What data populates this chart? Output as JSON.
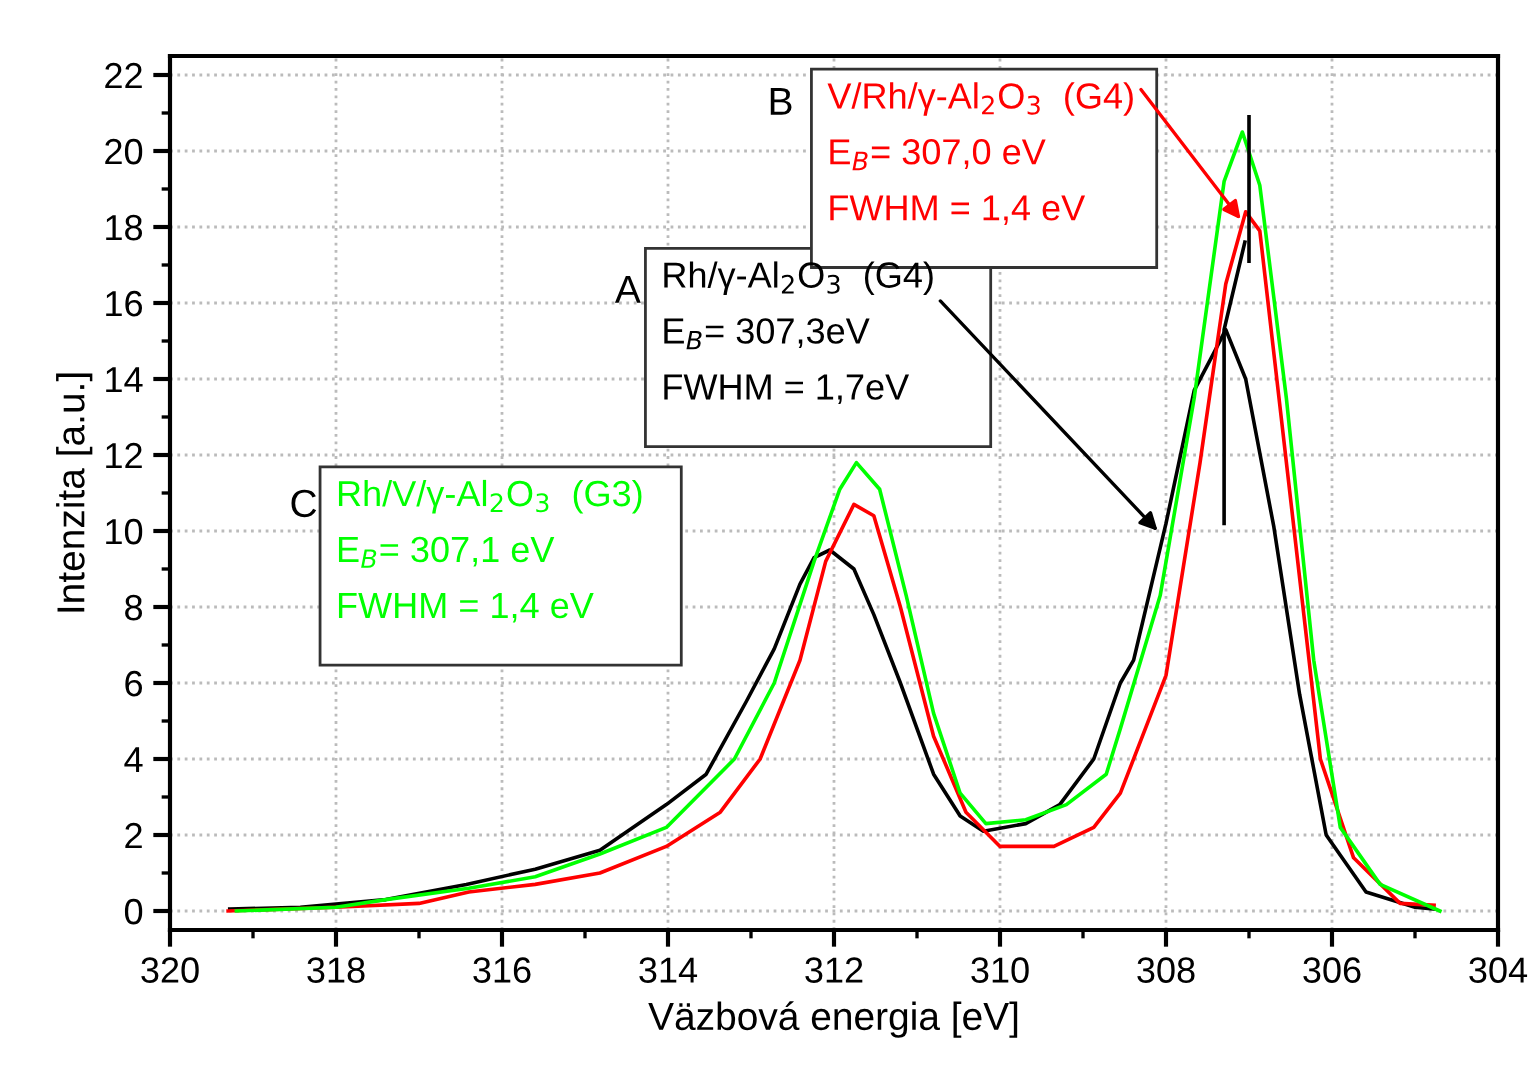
{
  "chart_data": {
    "type": "line",
    "xlabel": "Väzbová energia [eV]",
    "ylabel": "Intenzita [a.u.]",
    "xlim": [
      320,
      304
    ],
    "ylim": [
      -0.5,
      22.5
    ],
    "xticks": [
      320,
      318,
      316,
      314,
      312,
      310,
      308,
      306,
      304
    ],
    "yticks": [
      0,
      2,
      4,
      6,
      8,
      10,
      12,
      14,
      16,
      18,
      20,
      22
    ],
    "grid": true,
    "legend": false,
    "marker": "none",
    "line_style": "solid",
    "series": [
      {
        "color": "#000000",
        "x": [
          319.28,
          318.43,
          317.4,
          316.43,
          315.6,
          314.82,
          314.02,
          313.54,
          313.06,
          312.72,
          312.41,
          312.24,
          312.05,
          311.76,
          311.52,
          311.2,
          310.8,
          310.48,
          310.2,
          309.69,
          309.28,
          308.87,
          308.55,
          308.39,
          308.0,
          307.66,
          307.42,
          307.28,
          307.04,
          306.7,
          306.39,
          306.07,
          305.59,
          305.0,
          304.77
        ],
        "values": [
          0.05,
          0.1,
          0.3,
          0.7,
          1.1,
          1.6,
          2.8,
          3.6,
          5.5,
          6.9,
          8.6,
          9.3,
          9.5,
          9.0,
          7.8,
          6.0,
          3.6,
          2.5,
          2.1,
          2.3,
          2.8,
          4.0,
          6.0,
          6.6,
          10.2,
          13.7,
          14.7,
          15.3,
          14.0,
          10.1,
          5.7,
          2.0,
          0.5,
          0.1,
          0.05
        ]
      },
      {
        "color": "#ff0000",
        "x": [
          319.3,
          318.0,
          317.0,
          316.4,
          315.6,
          314.82,
          314.02,
          313.37,
          312.89,
          312.41,
          312.1,
          311.76,
          311.52,
          311.2,
          310.8,
          310.41,
          310.0,
          309.35,
          308.87,
          308.55,
          308.0,
          307.59,
          307.28,
          307.04,
          306.87,
          306.46,
          306.14,
          305.74,
          305.18,
          304.77
        ],
        "values": [
          0.0,
          0.1,
          0.2,
          0.5,
          0.7,
          1.0,
          1.7,
          2.6,
          4.0,
          6.6,
          9.2,
          10.7,
          10.4,
          8.0,
          4.6,
          2.6,
          1.7,
          1.7,
          2.2,
          3.1,
          6.2,
          11.8,
          16.5,
          18.4,
          17.9,
          10.1,
          4.0,
          1.4,
          0.2,
          0.15
        ]
      },
      {
        "color": "#00ff00",
        "x": [
          319.2,
          318.0,
          317.4,
          316.4,
          315.6,
          314.82,
          314.02,
          313.2,
          312.72,
          312.24,
          311.93,
          311.73,
          311.45,
          311.13,
          310.8,
          310.48,
          310.17,
          309.69,
          309.2,
          308.72,
          308.55,
          308.07,
          307.66,
          307.3,
          307.08,
          306.87,
          306.55,
          306.22,
          305.9,
          305.42,
          304.7
        ],
        "values": [
          0.0,
          0.1,
          0.3,
          0.6,
          0.9,
          1.5,
          2.2,
          4.0,
          6.0,
          9.2,
          11.1,
          11.8,
          11.1,
          8.3,
          5.2,
          3.1,
          2.3,
          2.4,
          2.8,
          3.6,
          4.8,
          8.3,
          13.5,
          19.2,
          20.5,
          19.1,
          13.5,
          6.6,
          2.2,
          0.7,
          0.0
        ]
      },
      {
        "color": "#000000",
        "x": [
          307.3,
          307.3,
          307.05
        ],
        "values": [
          10.2,
          15.3,
          17.6
        ]
      },
      {
        "color": "#000000",
        "x": [
          307.0,
          307.0
        ],
        "values": [
          17.1,
          20.9
        ]
      }
    ],
    "annotations": [
      "A",
      {
        "text": "Rh/γ-Al$_{2}$O$_{3}$  (G4)",
        "x": 308.1,
        "y": 10.0
      },
      "E$_{B}$= 307,3eV",
      "FWHM = 1,7eV",
      "B",
      {
        "text": "V/Rh/γ-Al$_{2}$O$_{3}$  (G4)",
        "x": 307.1,
        "y": 18.2
      },
      "E$_{B}$= 307,0 eV",
      "FWHM = 1,4 eV",
      "C",
      "Rh/V/γ-Al$_{2}$O$_{3}$  (G3)",
      "E$_{B}$= 307,1 eV",
      "FWHM = 1,4 eV"
    ]
  }
}
